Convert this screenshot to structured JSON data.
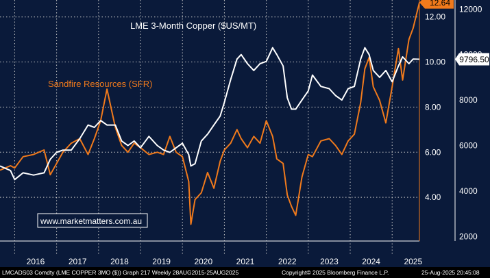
{
  "chart_data": {
    "type": "line",
    "x_range": [
      2015.65,
      2025.65
    ],
    "year_ticks": [
      "2016",
      "2017",
      "2018",
      "2019",
      "2020",
      "2021",
      "2022",
      "2023",
      "2024",
      "2025"
    ],
    "right_axis": {
      "label": "",
      "range": [
        1800,
        12400
      ],
      "ticks": [
        "2000",
        "4000",
        "6000",
        "8000",
        "10000",
        "12000"
      ]
    },
    "left_axis": {
      "label": "",
      "range": [
        2.06,
        12.75
      ],
      "ticks": [
        "4.00",
        "6.00",
        "8.00",
        "10.00",
        "12.00"
      ]
    },
    "annotations": {
      "copper_title": "LME 3-Month Copper ($US/MT)",
      "sfr_title": "Sandfire Resources (SFR)",
      "watermark": "www.marketmatters.com.au"
    },
    "series": [
      {
        "name": "LME 3-Month Copper ($US/MT)",
        "axis": "right",
        "color": "#ffffff",
        "last_label": "9796.50",
        "x": [
          2015.65,
          2015.9,
          2016.0,
          2016.2,
          2016.45,
          2016.7,
          2016.85,
          2017.0,
          2017.15,
          2017.35,
          2017.55,
          2017.75,
          2017.9,
          2018.05,
          2018.2,
          2018.4,
          2018.55,
          2018.7,
          2018.85,
          2019.0,
          2019.2,
          2019.4,
          2019.55,
          2019.7,
          2019.85,
          2020.0,
          2020.15,
          2020.2,
          2020.3,
          2020.45,
          2020.6,
          2020.75,
          2020.9,
          2021.0,
          2021.15,
          2021.3,
          2021.4,
          2021.55,
          2021.7,
          2021.85,
          2022.0,
          2022.15,
          2022.25,
          2022.4,
          2022.5,
          2022.6,
          2022.7,
          2022.85,
          2023.0,
          2023.1,
          2023.3,
          2023.5,
          2023.65,
          2023.8,
          2023.95,
          2024.1,
          2024.25,
          2024.35,
          2024.45,
          2024.55,
          2024.7,
          2024.85,
          2025.0,
          2025.15,
          2025.25,
          2025.4,
          2025.5,
          2025.65
        ],
        "values": [
          5100,
          4900,
          4500,
          4800,
          4700,
          4800,
          5400,
          5700,
          5800,
          5800,
          6300,
          6900,
          6800,
          7100,
          6900,
          6900,
          6200,
          6000,
          6200,
          5900,
          6400,
          6000,
          5800,
          5700,
          5900,
          6100,
          5600,
          5100,
          5200,
          6200,
          6500,
          6900,
          7300,
          7900,
          8900,
          9800,
          10000,
          9600,
          9300,
          9600,
          9700,
          10300,
          10000,
          9500,
          8100,
          7600,
          7600,
          8000,
          8400,
          9100,
          8600,
          8500,
          8200,
          8000,
          8500,
          8600,
          9800,
          10300,
          10000,
          9300,
          9000,
          9300,
          8800,
          9500,
          9900,
          9600,
          9800,
          9796.5
        ]
      },
      {
        "name": "Sandfire Resources (SFR)",
        "axis": "left",
        "color": "#f07a1c",
        "last_label": "12.64",
        "x": [
          2015.65,
          2015.9,
          2016.0,
          2016.2,
          2016.45,
          2016.7,
          2016.85,
          2017.0,
          2017.15,
          2017.35,
          2017.55,
          2017.75,
          2017.9,
          2018.05,
          2018.2,
          2018.4,
          2018.55,
          2018.7,
          2018.85,
          2019.0,
          2019.2,
          2019.4,
          2019.55,
          2019.7,
          2019.85,
          2020.0,
          2020.15,
          2020.2,
          2020.3,
          2020.45,
          2020.6,
          2020.75,
          2020.9,
          2021.0,
          2021.15,
          2021.3,
          2021.4,
          2021.55,
          2021.7,
          2021.85,
          2022.0,
          2022.15,
          2022.25,
          2022.4,
          2022.5,
          2022.6,
          2022.7,
          2022.85,
          2023.0,
          2023.1,
          2023.3,
          2023.5,
          2023.65,
          2023.8,
          2023.95,
          2024.1,
          2024.25,
          2024.35,
          2024.45,
          2024.55,
          2024.7,
          2024.85,
          2025.0,
          2025.15,
          2025.25,
          2025.4,
          2025.5,
          2025.65
        ],
        "values": [
          5.2,
          5.4,
          5.3,
          5.8,
          5.9,
          6.1,
          5.0,
          5.5,
          6.0,
          6.4,
          6.6,
          5.9,
          6.6,
          7.4,
          8.8,
          7.1,
          6.3,
          6.0,
          6.4,
          6.2,
          5.9,
          6.0,
          5.9,
          6.7,
          6.0,
          5.8,
          4.7,
          2.8,
          3.9,
          4.2,
          5.1,
          4.4,
          5.6,
          6.1,
          6.4,
          7.0,
          6.6,
          6.2,
          6.7,
          6.4,
          7.4,
          6.7,
          5.7,
          5.5,
          4.1,
          3.6,
          3.2,
          4.9,
          5.9,
          5.8,
          6.5,
          6.6,
          6.3,
          5.9,
          6.5,
          6.8,
          8.2,
          9.7,
          10.2,
          8.9,
          8.3,
          7.3,
          8.9,
          10.6,
          9.2,
          11.0,
          11.5,
          12.64
        ]
      }
    ],
    "legend": "none",
    "grid": true
  },
  "footer": {
    "left": "LMCADS03 Comdty (LME COPPER   3MO ($)) Graph 217  Weekly 28AUG2015-25AUG2025",
    "center": "Copyright© 2025 Bloomberg Finance L.P.",
    "right": "25-Aug-2025 20:45:08"
  }
}
